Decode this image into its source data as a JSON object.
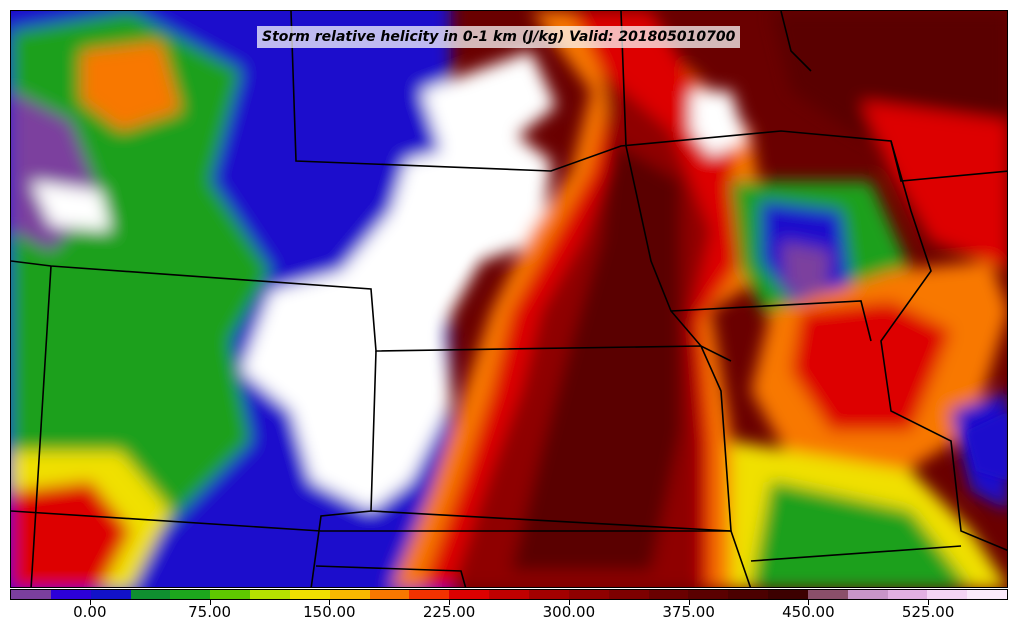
{
  "title": "Storm relative helicity in 0-1 km (J/kg) Valid: 201805010700",
  "colorbar": {
    "min": -50,
    "max": 575,
    "step": 25,
    "colors": [
      "#7b3f9e",
      "#2c00d8",
      "#1212c8",
      "#0f8f30",
      "#1da61d",
      "#5fc800",
      "#b5e100",
      "#f0e000",
      "#f8b800",
      "#f87800",
      "#f23200",
      "#dd0000",
      "#c00000",
      "#a30000",
      "#8f0000",
      "#7d0000",
      "#6a0000",
      "#5a0000",
      "#4b0000",
      "#3c0000",
      "#8a4f6a",
      "#c895c8",
      "#e2b0e2",
      "#f4d4f4",
      "#fbeafb"
    ],
    "tick_values": [
      0,
      75,
      150,
      225,
      300,
      375,
      450,
      525
    ],
    "tick_labels": [
      "0.00",
      "75.00",
      "150.00",
      "225.00",
      "300.00",
      "375.00",
      "450.00",
      "525.00"
    ]
  },
  "fields": {
    "white": "#ffffff",
    "purple": "#7b3f9e",
    "blue": "#1a10cc",
    "green": "#1aa01a",
    "yellow": "#f0e000",
    "orange": "#f87800",
    "red": "#dd0000",
    "darkred": "#8f0000",
    "maroon": "#5a0000"
  }
}
